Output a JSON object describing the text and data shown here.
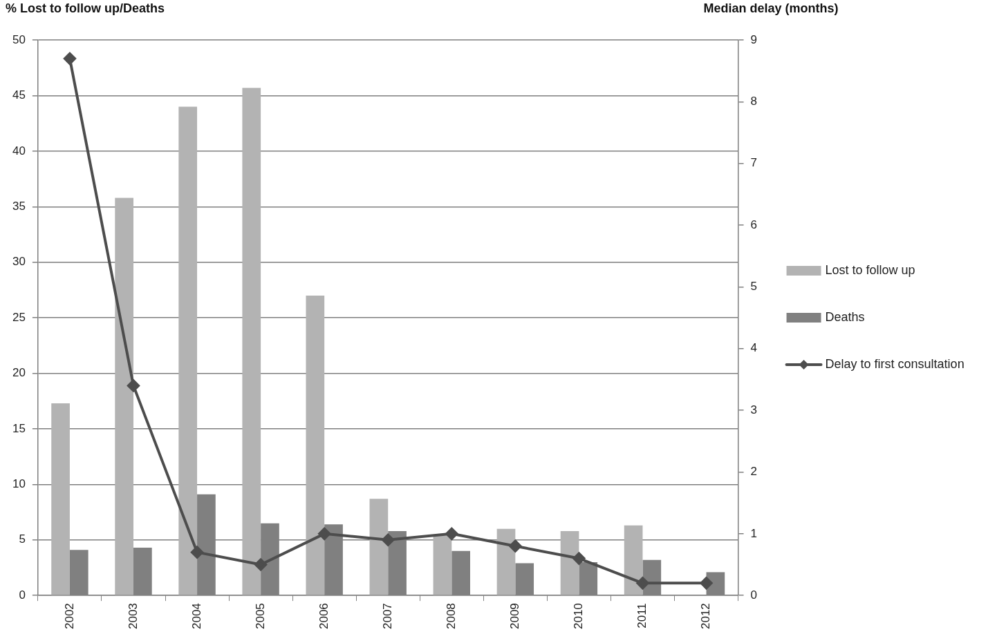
{
  "chart_data": {
    "type": "bar",
    "ylabel": "% Lost to follow up/Deaths",
    "y2label": "Median delay (months)",
    "categories": [
      "2002",
      "2003",
      "2004",
      "2005",
      "2006",
      "2007",
      "2008",
      "2009",
      "2010",
      "2011",
      "2012"
    ],
    "series": [
      {
        "name": "Lost to follow up",
        "color": "#b3b3b3",
        "values": [
          17.3,
          35.8,
          44.0,
          45.7,
          27.0,
          8.7,
          5.4,
          6.0,
          5.8,
          6.3,
          null
        ]
      },
      {
        "name": "Deaths",
        "color": "#808080",
        "values": [
          4.1,
          4.3,
          9.1,
          6.5,
          6.4,
          5.8,
          4.0,
          2.9,
          3.0,
          3.2,
          2.1
        ]
      },
      {
        "name": "Delay to first consultation",
        "type": "line",
        "axis": "y2",
        "color": "#4d4d4d",
        "values": [
          8.7,
          3.4,
          0.7,
          0.5,
          1.0,
          0.9,
          1.0,
          0.8,
          0.6,
          0.2,
          0.2
        ]
      }
    ],
    "ylim": [
      0,
      50
    ],
    "yticks": [
      0,
      5,
      10,
      15,
      20,
      25,
      30,
      35,
      40,
      45,
      50
    ],
    "y2lim": [
      0,
      9
    ],
    "y2ticks": [
      0,
      1,
      2,
      3,
      4,
      5,
      6,
      7,
      8,
      9
    ],
    "grid": "y",
    "legend": "right",
    "marker": "diamond"
  }
}
